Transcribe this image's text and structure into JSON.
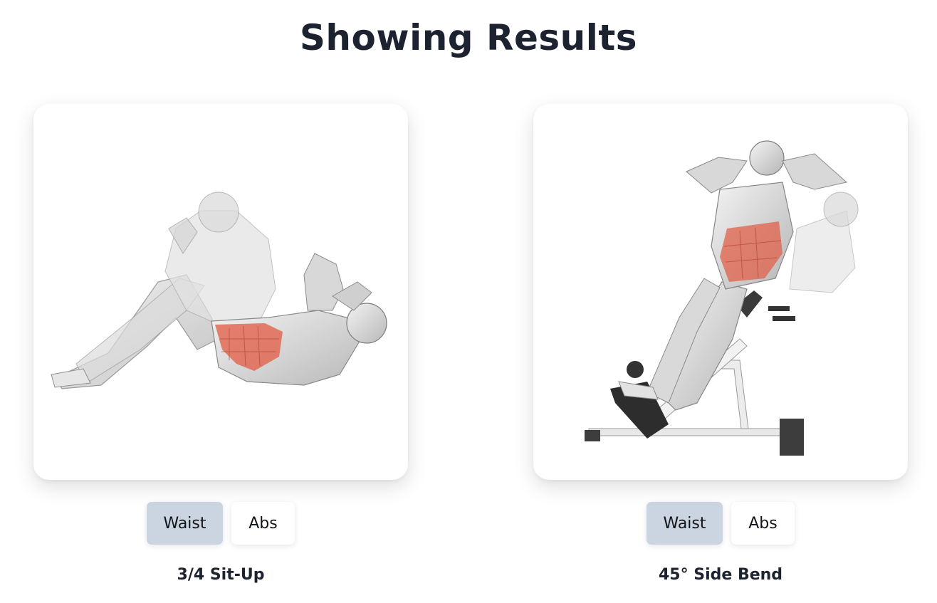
{
  "header": {
    "title": "Showing Results"
  },
  "results": [
    {
      "name": "3/4 Sit-Up",
      "tags": [
        "Waist",
        "Abs"
      ],
      "image_icon": "sit-up-illustration",
      "highlight_color": "#e06048"
    },
    {
      "name": "45° Side Bend",
      "tags": [
        "Waist",
        "Abs"
      ],
      "image_icon": "side-bend-illustration",
      "highlight_color": "#e06048"
    }
  ]
}
